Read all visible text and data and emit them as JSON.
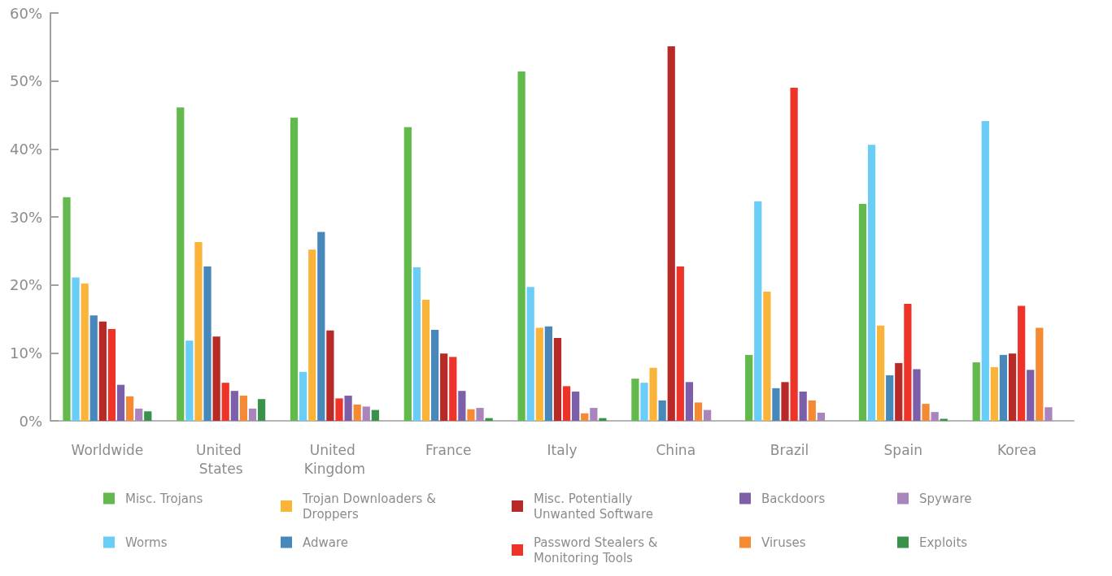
{
  "chart_data": {
    "type": "bar",
    "categories": [
      "Worldwide",
      "United States",
      "United Kingdom",
      "France",
      "Italy",
      "China",
      "Brazil",
      "Spain",
      "Korea"
    ],
    "series": [
      {
        "name": "Misc. Trojans",
        "color": "#62b94c",
        "values": [
          32.9,
          46.1,
          44.6,
          43.2,
          51.4,
          6.2,
          9.7,
          31.9,
          8.6
        ]
      },
      {
        "name": "Worms",
        "color": "#69cdf5",
        "values": [
          21.1,
          11.8,
          7.2,
          22.6,
          19.7,
          5.6,
          32.3,
          40.6,
          44.1
        ]
      },
      {
        "name": "Trojan Downloaders & Droppers",
        "color": "#fbb43a",
        "values": [
          20.2,
          26.3,
          25.2,
          17.8,
          13.7,
          7.8,
          19.0,
          14.0,
          7.9
        ]
      },
      {
        "name": "Adware",
        "color": "#4787b9",
        "values": [
          15.5,
          22.7,
          27.8,
          13.4,
          13.9,
          3.0,
          4.8,
          6.7,
          9.7
        ]
      },
      {
        "name": "Misc. Potentially Unwanted Software",
        "color": "#b72a27",
        "values": [
          14.6,
          12.4,
          13.3,
          9.9,
          12.2,
          55.1,
          5.7,
          8.5,
          9.9
        ]
      },
      {
        "name": "Password Stealers & Monitoring Tools",
        "color": "#ee3329",
        "values": [
          13.5,
          5.6,
          3.3,
          9.4,
          5.1,
          22.7,
          49.0,
          17.2,
          16.9
        ]
      },
      {
        "name": "Backdoors",
        "color": "#7c5ea9",
        "values": [
          5.3,
          4.4,
          3.7,
          4.4,
          4.3,
          5.7,
          4.3,
          7.6,
          7.5
        ]
      },
      {
        "name": "Viruses",
        "color": "#f48a33",
        "values": [
          3.6,
          3.7,
          2.4,
          1.7,
          1.1,
          2.7,
          3.0,
          2.5,
          13.7
        ]
      },
      {
        "name": "Spyware",
        "color": "#a985bb",
        "values": [
          1.8,
          1.8,
          2.1,
          1.9,
          1.9,
          1.6,
          1.2,
          1.3,
          2.0
        ]
      },
      {
        "name": "Exploits",
        "color": "#3a914a",
        "values": [
          1.4,
          3.2,
          1.6,
          0.4,
          0.4,
          null,
          null,
          0.3,
          null
        ]
      }
    ],
    "ylim": [
      0,
      60
    ],
    "yticks": [
      {
        "value": 0,
        "label": "0%"
      },
      {
        "value": 10,
        "label": "10%"
      },
      {
        "value": 20,
        "label": "20%"
      },
      {
        "value": 30,
        "label": "30%"
      },
      {
        "value": 40,
        "label": "40%"
      },
      {
        "value": 50,
        "label": "50%"
      },
      {
        "value": 60,
        "label": "60%"
      }
    ],
    "grid": false,
    "legend": "bottom"
  }
}
